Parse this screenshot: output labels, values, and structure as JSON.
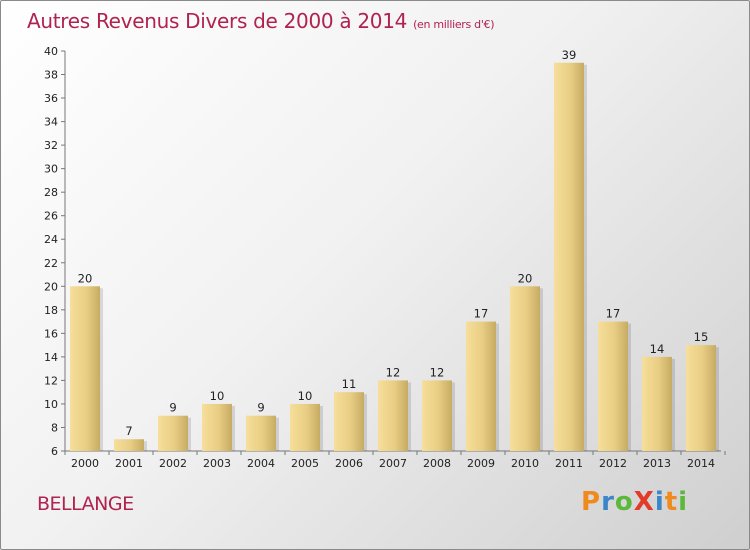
{
  "title": "Autres Revenus Divers de 2000 à 2014",
  "subtitle": "(en milliers d'€)",
  "location": "BELLANGE",
  "logo": "ProXiti",
  "colors": {
    "bar_light": "#f7df9a",
    "bar_dark": "#c7ab63",
    "title": "#b0224f"
  },
  "chart_data": {
    "type": "bar",
    "title": "Autres Revenus Divers de 2000 à 2014",
    "subtitle": "(en milliers d'€)",
    "categories": [
      "2000",
      "2001",
      "2002",
      "2003",
      "2004",
      "2005",
      "2006",
      "2007",
      "2008",
      "2009",
      "2010",
      "2011",
      "2012",
      "2013",
      "2014"
    ],
    "values": [
      20,
      7,
      9,
      10,
      9,
      10,
      11,
      12,
      12,
      17,
      20,
      39,
      17,
      14,
      15
    ],
    "ylim": [
      6,
      40
    ],
    "yticks": [
      6,
      8,
      10,
      12,
      14,
      16,
      18,
      20,
      22,
      24,
      26,
      28,
      30,
      32,
      34,
      36,
      38,
      40
    ],
    "xlabel": "",
    "ylabel": "",
    "grid": false,
    "legend": "none"
  }
}
